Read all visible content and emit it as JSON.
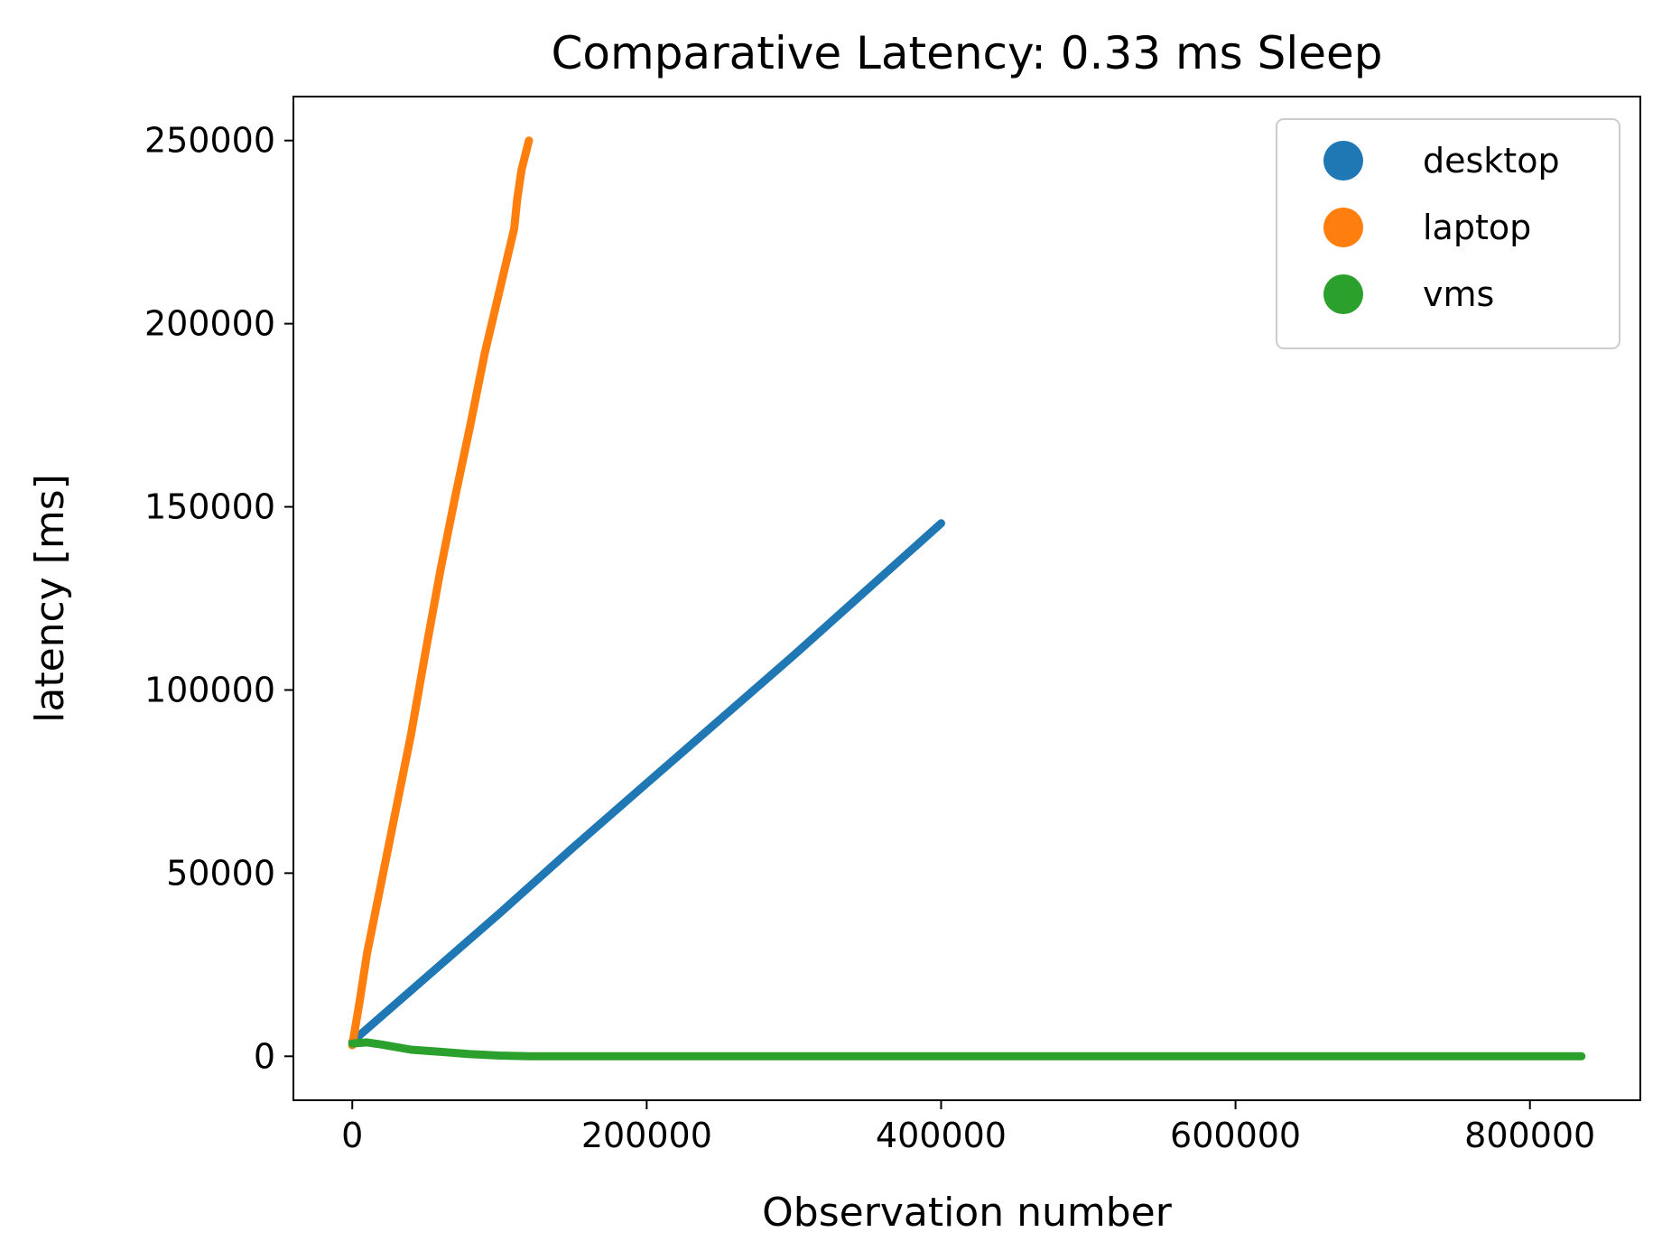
{
  "chart_data": {
    "type": "scatter",
    "title": "Comparative Latency: 0.33 ms Sleep",
    "xlabel": "Observation number",
    "ylabel": "latency [ms]",
    "xlim": [
      -40000,
      875000
    ],
    "ylim": [
      -12000,
      262000
    ],
    "xticks": [
      0,
      200000,
      400000,
      600000,
      800000
    ],
    "xtick_labels": [
      "0",
      "200000",
      "400000",
      "600000",
      "800000"
    ],
    "yticks": [
      0,
      50000,
      100000,
      150000,
      200000,
      250000
    ],
    "ytick_labels": [
      "0",
      "50000",
      "100000",
      "150000",
      "200000",
      "250000"
    ],
    "grid": false,
    "legend_position": "top-right",
    "series": [
      {
        "name": "desktop",
        "color": "#1f77b4",
        "x": [
          0,
          50000,
          100000,
          150000,
          200000,
          250000,
          300000,
          350000,
          400000
        ],
        "y": [
          4000,
          21500,
          39000,
          57000,
          74500,
          92000,
          109500,
          127500,
          145500
        ]
      },
      {
        "name": "laptop",
        "color": "#ff7f0e",
        "x": [
          0,
          5000,
          10000,
          20000,
          30000,
          40000,
          50000,
          60000,
          70000,
          80000,
          90000,
          100000,
          110000,
          112000,
          115000,
          120000
        ],
        "y": [
          3000,
          15000,
          28000,
          48000,
          68000,
          88000,
          111000,
          133000,
          153000,
          172000,
          192000,
          209000,
          226000,
          234000,
          242000,
          250000
        ]
      },
      {
        "name": "vms",
        "color": "#2ca02c",
        "x": [
          0,
          10000,
          20000,
          40000,
          60000,
          80000,
          100000,
          120000,
          200000,
          400000,
          550000,
          560000,
          700000,
          835000
        ],
        "y": [
          3500,
          3800,
          3200,
          1800,
          1200,
          600,
          200,
          0,
          0,
          0,
          0,
          0,
          0,
          0
        ]
      }
    ]
  }
}
